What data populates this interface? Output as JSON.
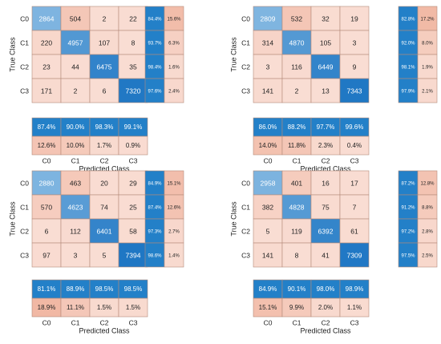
{
  "chart_data": [
    {
      "type": "heatmap",
      "position": "top-left",
      "row_labels": [
        "C0",
        "C1",
        "C2",
        "C3"
      ],
      "col_labels": [
        "C0",
        "C1",
        "C2",
        "C3"
      ],
      "ylabel": "True Class",
      "xlabel": "Predicted Class",
      "matrix": [
        [
          2864,
          504,
          2,
          22
        ],
        [
          220,
          4957,
          107,
          8
        ],
        [
          23,
          44,
          6475,
          35
        ],
        [
          171,
          2,
          6,
          7320
        ]
      ],
      "row_summary": [
        [
          "84.4%",
          "15.6%"
        ],
        [
          "93.7%",
          "6.3%"
        ],
        [
          "98.4%",
          "1.6%"
        ],
        [
          "97.6%",
          "2.4%"
        ]
      ],
      "col_summary": [
        [
          "87.4%",
          "12.6%"
        ],
        [
          "90.0%",
          "10.0%"
        ],
        [
          "98.3%",
          "1.7%"
        ],
        [
          "99.1%",
          "0.9%"
        ]
      ]
    },
    {
      "type": "heatmap",
      "position": "top-right",
      "row_labels": [
        "C0",
        "C1",
        "C2",
        "C3"
      ],
      "col_labels": [
        "C0",
        "C1",
        "C2",
        "C3"
      ],
      "ylabel": "True Class",
      "xlabel": "Predicted Class",
      "matrix": [
        [
          2809,
          532,
          32,
          19
        ],
        [
          314,
          4870,
          105,
          3
        ],
        [
          3,
          116,
          6449,
          9
        ],
        [
          141,
          2,
          13,
          7343
        ]
      ],
      "row_summary": [
        [
          "82.8%",
          "17.2%"
        ],
        [
          "92.0%",
          "8.0%"
        ],
        [
          "98.1%",
          "1.9%"
        ],
        [
          "97.9%",
          "2.1%"
        ]
      ],
      "col_summary": [
        [
          "86.0%",
          "14.0%"
        ],
        [
          "88.2%",
          "11.8%"
        ],
        [
          "97.7%",
          "2.3%"
        ],
        [
          "99.6%",
          "0.4%"
        ]
      ]
    },
    {
      "type": "heatmap",
      "position": "bottom-left",
      "row_labels": [
        "C0",
        "C1",
        "C2",
        "C3"
      ],
      "col_labels": [
        "C0",
        "C1",
        "C2",
        "C3"
      ],
      "ylabel": "True Class",
      "xlabel": "Predicted Class",
      "matrix": [
        [
          2880,
          463,
          20,
          29
        ],
        [
          570,
          4623,
          74,
          25
        ],
        [
          6,
          112,
          6401,
          58
        ],
        [
          97,
          3,
          5,
          7394
        ]
      ],
      "row_summary": [
        [
          "84.9%",
          "15.1%"
        ],
        [
          "87.4%",
          "12.6%"
        ],
        [
          "97.3%",
          "2.7%"
        ],
        [
          "98.6%",
          "1.4%"
        ]
      ],
      "col_summary": [
        [
          "81.1%",
          "18.9%"
        ],
        [
          "88.9%",
          "11.1%"
        ],
        [
          "98.5%",
          "1.5%"
        ],
        [
          "98.5%",
          "1.5%"
        ]
      ]
    },
    {
      "type": "heatmap",
      "position": "bottom-right",
      "row_labels": [
        "C0",
        "C1",
        "C2",
        "C3"
      ],
      "col_labels": [
        "C0",
        "C1",
        "C2",
        "C3"
      ],
      "ylabel": "True Class",
      "xlabel": "Predicted Class",
      "matrix": [
        [
          2958,
          401,
          16,
          17
        ],
        [
          382,
          4828,
          75,
          7
        ],
        [
          5,
          119,
          6392,
          61
        ],
        [
          141,
          8,
          41,
          7309
        ]
      ],
      "row_summary": [
        [
          "87.2%",
          "12.8%"
        ],
        [
          "91.2%",
          "8.8%"
        ],
        [
          "97.2%",
          "2.8%"
        ],
        [
          "97.5%",
          "2.5%"
        ]
      ],
      "col_summary": [
        [
          "84.9%",
          "15.1%"
        ],
        [
          "90.1%",
          "9.9%"
        ],
        [
          "98.0%",
          "2.0%"
        ],
        [
          "98.9%",
          "1.1%"
        ]
      ]
    }
  ],
  "colors": {
    "diag_dark": "#1f77c4",
    "diag_light": "#7fb5e0",
    "offdiag": "#f9ddd3",
    "offdiag_strong": "#f1b8a4",
    "summary_correct": "#2380c8",
    "grid_line": "#b58a7a"
  }
}
